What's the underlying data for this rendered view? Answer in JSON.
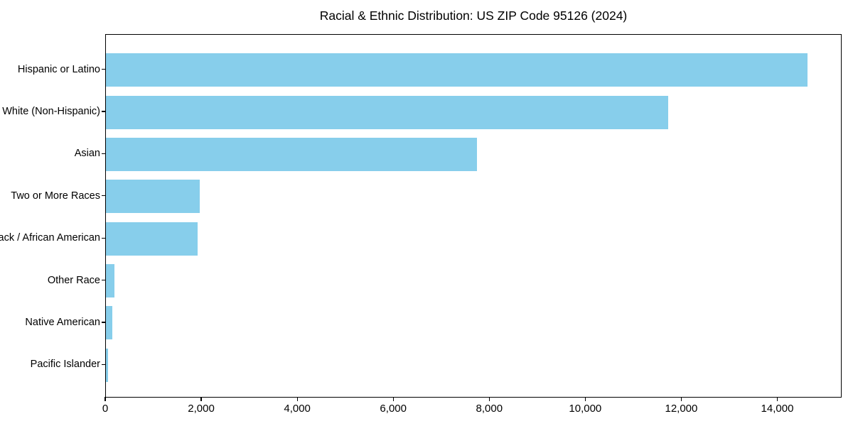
{
  "chart_data": {
    "type": "bar",
    "orientation": "horizontal",
    "title": "Racial & Ethnic Distribution: US ZIP Code 95126 (2024)",
    "categories": [
      "Hispanic or Latino",
      "White (Non-Hispanic)",
      "Asian",
      "Two or More Races",
      "Black / African American",
      "Other Race",
      "Native American",
      "Pacific Islander"
    ],
    "values": [
      14640,
      11730,
      7750,
      1960,
      1910,
      180,
      140,
      40
    ],
    "xlabel": "",
    "ylabel": "",
    "xlim": [
      0,
      15340
    ],
    "xticks": [
      {
        "value": 0,
        "label": "0"
      },
      {
        "value": 2000,
        "label": "2,000"
      },
      {
        "value": 4000,
        "label": "4,000"
      },
      {
        "value": 6000,
        "label": "6,000"
      },
      {
        "value": 8000,
        "label": "8,000"
      },
      {
        "value": 10000,
        "label": "10,000"
      },
      {
        "value": 12000,
        "label": "12,000"
      },
      {
        "value": 14000,
        "label": "14,000"
      }
    ],
    "grid": false,
    "legend": "none",
    "bar_color": "#87CEEB",
    "text_color": "#000000",
    "background_color": "#FFFFFF"
  }
}
